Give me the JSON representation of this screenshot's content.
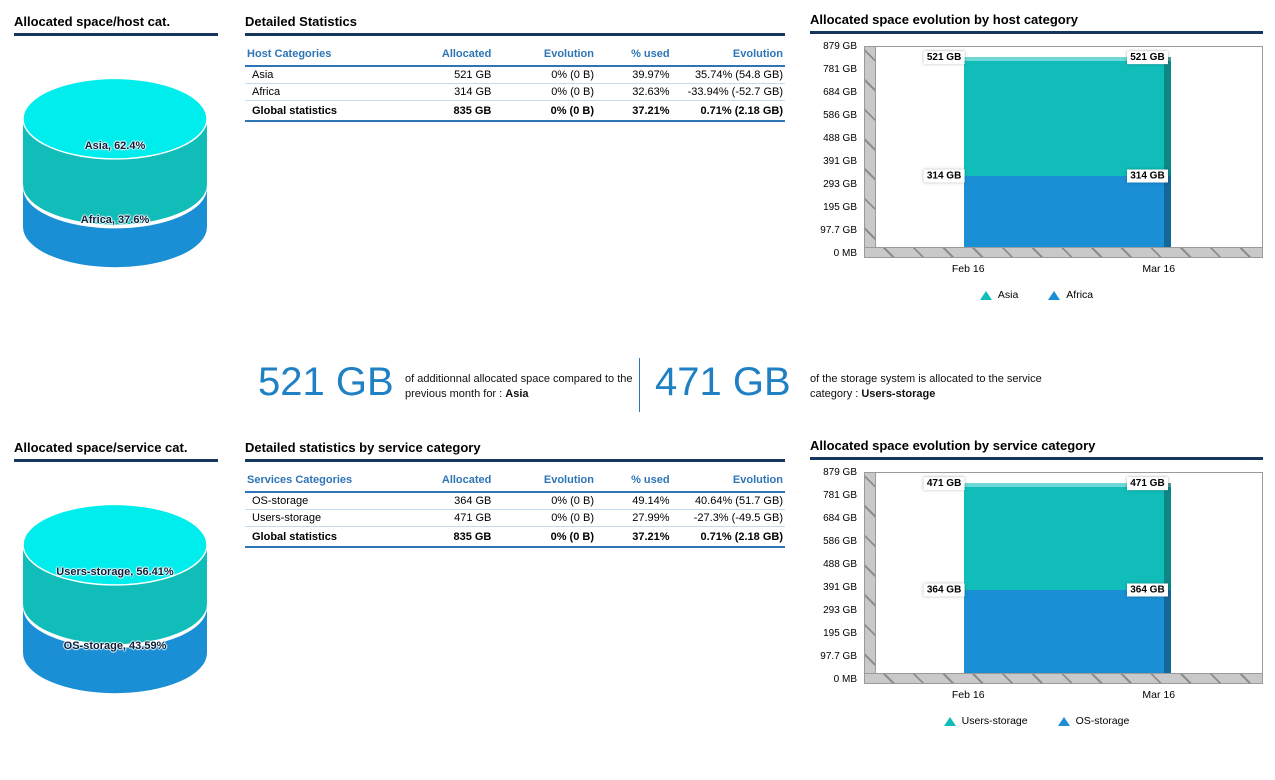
{
  "colors": {
    "teal_series": "#10bdb9",
    "blue_series": "#1b8fd5",
    "cyan_top": "#00eded",
    "table_header_blue": "#2e75b6",
    "title_underline_navy": "#16365c",
    "kpi_blue": "#1f80c4"
  },
  "tables": {
    "host": {
      "title": "Detailed Statistics",
      "headers": [
        "Host Categories",
        "Allocated",
        "Evolution",
        "% used",
        "Evolution"
      ],
      "rows": [
        [
          "Asia",
          "521 GB",
          "0% (0 B)",
          "39.97%",
          "35.74% (54.8 GB)"
        ],
        [
          "Africa",
          "314 GB",
          "0% (0 B)",
          "32.63%",
          "-33.94% (-52.7 GB)"
        ]
      ],
      "total": [
        "Global statistics",
        "835 GB",
        "0% (0 B)",
        "37.21%",
        "0.71% (2.18 GB)"
      ]
    },
    "service": {
      "title": "Detailed statistics by service category",
      "headers": [
        "Services Categories",
        "Allocated",
        "Evolution",
        "% used",
        "Evolution"
      ],
      "rows": [
        [
          "OS-storage",
          "364 GB",
          "0% (0 B)",
          "49.14%",
          "40.64% (51.7 GB)"
        ],
        [
          "Users-storage",
          "471 GB",
          "0% (0 B)",
          "27.99%",
          "-27.3% (-49.5 GB)"
        ]
      ],
      "total": [
        "Global statistics",
        "835 GB",
        "0% (0 B)",
        "37.21%",
        "0.71% (2.18 GB)"
      ]
    }
  },
  "kpis": {
    "kpi1": {
      "value": "521 GB",
      "text": "of additionnal allocated space compared to the previous month for : ",
      "highlight": "Asia"
    },
    "kpi2": {
      "value": "471 GB",
      "text": "of the storage system is allocated to the service category : ",
      "highlight": "Users-storage"
    }
  },
  "chart_data": [
    {
      "type": "pie",
      "title": "Allocated space/host cat.",
      "labels": [
        "Asia",
        "Africa"
      ],
      "values": [
        62.4,
        37.6
      ],
      "unit": "%",
      "display_labels": [
        "Asia, 62.4%",
        "Africa, 37.6%"
      ],
      "colors": [
        "#10bdb9",
        "#1b8fd5"
      ],
      "top_color": "#00eded"
    },
    {
      "type": "bar",
      "stacked": true,
      "title": "Allocated space evolution by host category",
      "categories": [
        "Feb 16",
        "Mar 16"
      ],
      "series": [
        {
          "name": "Asia",
          "values": [
            521,
            521
          ],
          "label": "521 GB",
          "color": "#10bdb9"
        },
        {
          "name": "Africa",
          "values": [
            314,
            314
          ],
          "label": "314 GB",
          "color": "#1b8fd5"
        }
      ],
      "ylim": [
        0,
        879
      ],
      "ytick_labels": [
        "879 GB",
        "781 GB",
        "684 GB",
        "586 GB",
        "488 GB",
        "391 GB",
        "293 GB",
        "195 GB",
        "97.7 GB",
        "0 MB"
      ],
      "legend_position": "bottom",
      "grid": false
    },
    {
      "type": "pie",
      "title": "Allocated space/service cat.",
      "labels": [
        "Users-storage",
        "OS-storage"
      ],
      "values": [
        56.41,
        43.59
      ],
      "unit": "%",
      "display_labels": [
        "Users-storage, 56.41%",
        "OS-storage, 43.59%"
      ],
      "colors": [
        "#10bdb9",
        "#1b8fd5"
      ],
      "top_color": "#00eded"
    },
    {
      "type": "bar",
      "stacked": true,
      "title": "Allocated space evolution by service category",
      "categories": [
        "Feb 16",
        "Mar 16"
      ],
      "series": [
        {
          "name": "Users-storage",
          "values": [
            471,
            471
          ],
          "label": "471 GB",
          "color": "#10bdb9"
        },
        {
          "name": "OS-storage",
          "values": [
            364,
            364
          ],
          "label": "364 GB",
          "color": "#1b8fd5"
        }
      ],
      "ylim": [
        0,
        879
      ],
      "ytick_labels": [
        "879 GB",
        "781 GB",
        "684 GB",
        "586 GB",
        "488 GB",
        "391 GB",
        "293 GB",
        "195 GB",
        "97.7 GB",
        "0 MB"
      ],
      "legend_position": "bottom",
      "grid": false
    }
  ]
}
